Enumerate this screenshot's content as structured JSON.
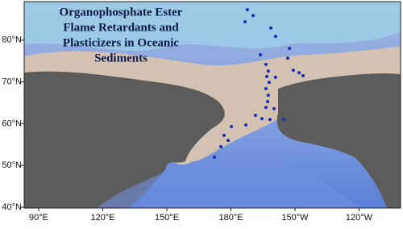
{
  "title_lines": [
    "Organophosphate Ester",
    "Flame Retardants and",
    "Plasticizers in Oceanic",
    "Sediments"
  ],
  "lon_ticks": [
    {
      "value": 90,
      "label": "90°E"
    },
    {
      "value": 120,
      "label": "120°E"
    },
    {
      "value": 150,
      "label": "150°E"
    },
    {
      "value": 180,
      "label": "180°E"
    },
    {
      "value": 210,
      "label": "150°W"
    },
    {
      "value": 240,
      "label": "120°W"
    }
  ],
  "lat_ticks": [
    {
      "value": 40,
      "label": "40°N"
    },
    {
      "value": 50,
      "label": "50°N"
    },
    {
      "value": 60,
      "label": "60°N"
    },
    {
      "value": 70,
      "label": "70°N"
    },
    {
      "value": 80,
      "label": "80°N"
    }
  ],
  "sites_color": "#1a2bb8",
  "sites": {
    "lon": [
      187.7,
      190.4,
      186.6,
      198.7,
      200.9,
      207.4,
      193.8,
      206.6,
      196.4,
      197.5,
      196.8,
      200.9,
      209.2,
      211.9,
      213.8,
      197.9,
      196.4,
      197.5,
      197.2,
      196.4,
      200.2,
      191.5,
      194.5,
      198.3,
      204.7,
      187.0,
      180.2,
      176.8,
      178.7,
      175.3,
      172.3
    ],
    "lat": [
      87.3,
      85.9,
      84.4,
      82.9,
      80.9,
      78.0,
      76.5,
      75.7,
      74.2,
      72.6,
      71.3,
      71.1,
      72.8,
      72.2,
      71.5,
      69.9,
      68.4,
      66.8,
      65.3,
      63.9,
      63.6,
      62.0,
      61.2,
      61.0,
      61.0,
      59.7,
      59.3,
      57.2,
      56.0,
      54.5,
      52.0
    ]
  }
}
